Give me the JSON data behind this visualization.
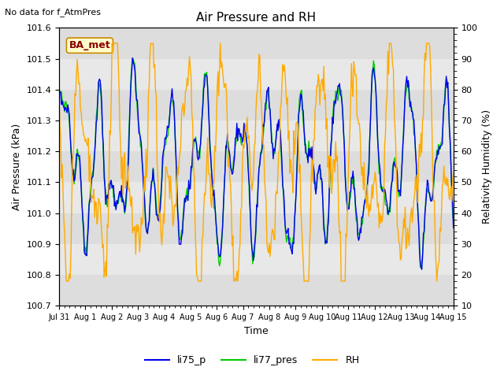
{
  "title": "Air Pressure and RH",
  "top_left_text": "No data for f_AtmPres",
  "box_label": "BA_met",
  "xlabel": "Time",
  "ylabel_left": "Air Pressure (kPa)",
  "ylabel_right": "Relativity Humidity (%)",
  "ylim_left": [
    100.7,
    101.6
  ],
  "ylim_right": [
    10,
    100
  ],
  "yticks_left": [
    100.7,
    100.8,
    100.9,
    101.0,
    101.1,
    101.2,
    101.3,
    101.4,
    101.5,
    101.6
  ],
  "yticks_right": [
    10,
    20,
    30,
    40,
    50,
    60,
    70,
    80,
    90,
    100
  ],
  "x_tick_labels": [
    "Jul 31",
    "Aug 1",
    "Aug 2",
    "Aug 3",
    "Aug 4",
    "Aug 5",
    "Aug 6",
    "Aug 7",
    "Aug 8",
    "Aug 9",
    "Aug 10",
    "Aug 11",
    "Aug 12",
    "Aug 13",
    "Aug 14",
    "Aug 15"
  ],
  "color_li75": "#0000ee",
  "color_li77": "#00cc00",
  "color_rh": "#ffaa00",
  "legend_labels": [
    "li75_p",
    "li77_pres",
    "RH"
  ],
  "fig_bg_color": "#ffffff",
  "plot_bg_dark": "#d0d0d0",
  "plot_bg_light": "#e8e8e8",
  "shaded_band_low": 100.85,
  "shaded_band_high": 101.5,
  "shaded_inner_color": "#e8e8e8",
  "shaded_outer_color": "#d0d0d0"
}
